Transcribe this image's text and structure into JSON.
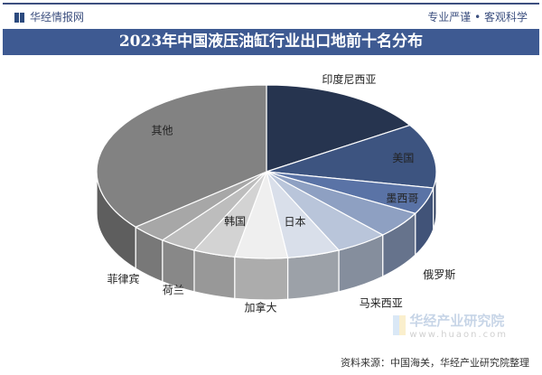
{
  "header": {
    "brand": "华经情报网",
    "slogan": "专业严谨 • 客观科学"
  },
  "chart_data": {
    "type": "pie",
    "style": "3d",
    "title": "2023年中国液压油缸行业出口地前十名分布",
    "categories": [
      "印度尼西亚",
      "美国",
      "墨西哥",
      "俄罗斯",
      "马来西亚",
      "日本",
      "加拿大",
      "韩国",
      "荷兰",
      "菲律宾",
      "其他"
    ],
    "values": [
      16,
      12,
      5,
      5,
      5,
      5,
      5,
      4,
      3.5,
      3.5,
      36
    ],
    "unit": "%",
    "colors": [
      "#26344f",
      "#3d5480",
      "#5a73a6",
      "#8ea0c2",
      "#b9c5da",
      "#d9dfea",
      "#efefef",
      "#d3d3d3",
      "#bdbdbd",
      "#a7a7a7",
      "#828282"
    ],
    "legend": "none"
  },
  "footer": {
    "source": "资料来源：中国海关，华经产业研究院整理"
  },
  "watermark": {
    "name": "华经产业研究院",
    "url": "www.huaon.com"
  }
}
